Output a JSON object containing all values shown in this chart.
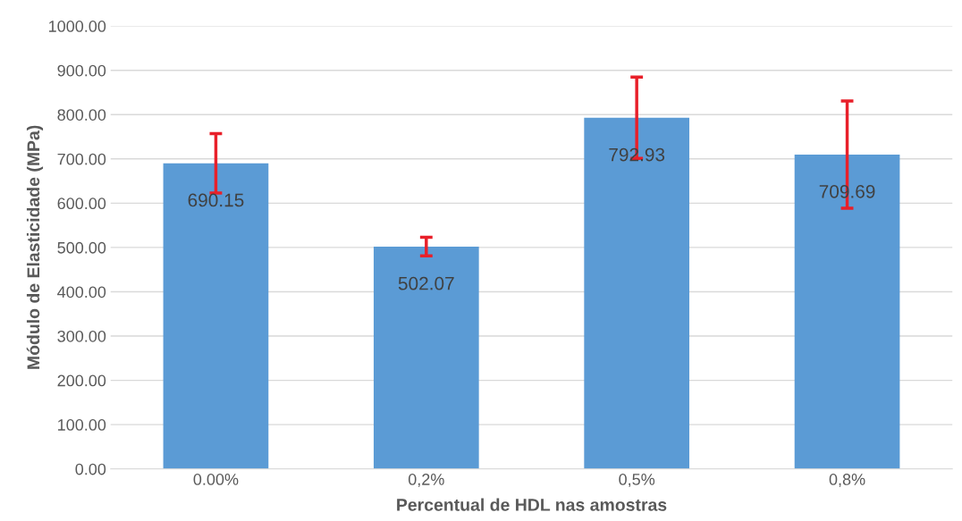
{
  "chart_data": {
    "type": "bar",
    "xlabel": "Percentual de HDL nas amostras",
    "ylabel": "Módulo de Elasticidade (MPa)",
    "categories": [
      "0.00%",
      "0,2%",
      "0,5%",
      "0,8%"
    ],
    "values": [
      690.15,
      502.07,
      792.93,
      709.69
    ],
    "value_labels": [
      "690.15",
      "502.07",
      "792.93",
      "709.69"
    ],
    "errors": [
      67,
      21,
      92,
      121
    ],
    "color": "#5b9bd5",
    "ylim": [
      0,
      1000
    ],
    "yticks": [
      {
        "value": 0,
        "label": "0.00"
      },
      {
        "value": 100,
        "label": "100.00"
      },
      {
        "value": 200,
        "label": "200.00"
      },
      {
        "value": 300,
        "label": "300.00"
      },
      {
        "value": 400,
        "label": "400.00"
      },
      {
        "value": 500,
        "label": "500.00"
      },
      {
        "value": 600,
        "label": "600.00"
      },
      {
        "value": 700,
        "label": "700.00"
      },
      {
        "value": 800,
        "label": "800.00"
      },
      {
        "value": 900,
        "label": "900.00"
      },
      {
        "value": 1000,
        "label": "1000.00"
      }
    ],
    "grid": "y"
  }
}
